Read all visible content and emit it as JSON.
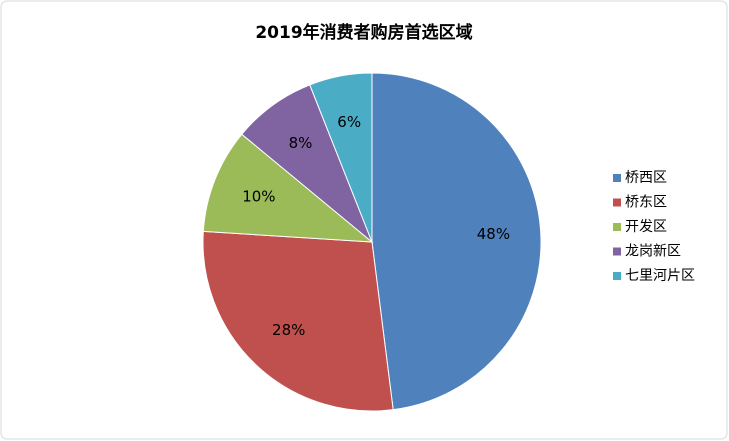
{
  "chart_data": {
    "type": "pie",
    "title": "2019年消费者购房首选区域",
    "categories": [
      "桥西区",
      "桥东区",
      "开发区",
      "龙岗新区",
      "七里河片区"
    ],
    "values": [
      48,
      28,
      10,
      8,
      6
    ],
    "value_labels": [
      "48%",
      "28%",
      "10%",
      "8%",
      "6%"
    ],
    "colors": [
      "#4f81bd",
      "#c0504d",
      "#9bbb59",
      "#8064a2",
      "#4bacc6"
    ],
    "legend": "right"
  }
}
